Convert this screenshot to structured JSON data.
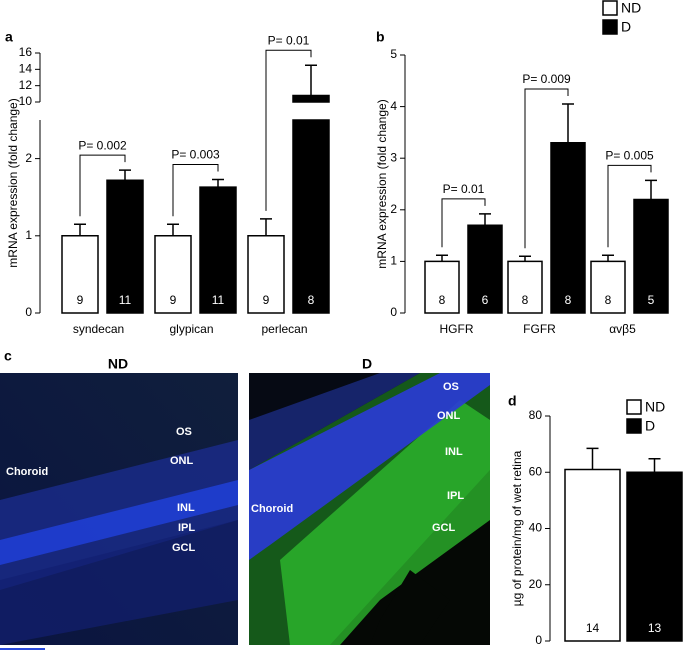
{
  "chart_data": [
    {
      "panel": "a",
      "type": "bar",
      "y_label": "mRNA expression (fold change)",
      "categories": [
        "syndecan",
        "glypican",
        "perlecan"
      ],
      "series": [
        {
          "color": "#ffffff",
          "values": [
            1,
            1,
            1
          ],
          "errors": [
            0.15,
            0.15,
            0.22
          ],
          "n": [
            9,
            9,
            9
          ]
        },
        {
          "color": "#000000",
          "values": [
            1.72,
            1.63,
            10.8
          ],
          "errors": [
            0.13,
            0.1,
            3.7
          ],
          "n": [
            11,
            11,
            8
          ]
        }
      ],
      "ylim": [
        0,
        16
      ],
      "ybreak": [
        2.5,
        10
      ],
      "yticks": [
        0,
        1,
        2,
        10,
        12,
        14,
        16
      ],
      "annotations": [
        {
          "text": "P= 0.002",
          "category": 0
        },
        {
          "text": "P= 0.003",
          "category": 1
        },
        {
          "text": "P= 0.01",
          "category": 2
        }
      ]
    },
    {
      "panel": "b",
      "type": "bar",
      "y_label": "mRNA expression (fold change)",
      "categories": [
        "HGFR",
        "FGFR",
        "αvβ5"
      ],
      "series": [
        {
          "name": "ND",
          "color": "#ffffff",
          "values": [
            1,
            1,
            1
          ],
          "errors": [
            0.12,
            0.1,
            0.12
          ],
          "n": [
            8,
            8,
            8
          ]
        },
        {
          "name": "D",
          "color": "#000000",
          "values": [
            1.7,
            3.3,
            2.2
          ],
          "errors": [
            0.22,
            0.75,
            0.37
          ],
          "n": [
            6,
            8,
            5
          ]
        }
      ],
      "ylim": [
        0,
        5
      ],
      "yticks": [
        0,
        1,
        2,
        3,
        4,
        5
      ],
      "legend": "top-right",
      "annotations": [
        {
          "text": "P= 0.01",
          "category": 0
        },
        {
          "text": "P= 0.009",
          "category": 1
        },
        {
          "text": "P= 0.005",
          "category": 2
        }
      ]
    },
    {
      "panel": "d",
      "type": "bar",
      "y_label": "µg of protein/mg of wet retina",
      "categories": [
        null
      ],
      "series": [
        {
          "name": "ND",
          "color": "#ffffff",
          "values": [
            61
          ],
          "errors": [
            7.5
          ],
          "n": [
            14
          ]
        },
        {
          "name": "D",
          "color": "#000000",
          "values": [
            60
          ],
          "errors": [
            4.8
          ],
          "n": [
            13
          ]
        }
      ],
      "ylim": [
        0,
        80
      ],
      "yticks": [
        0,
        20,
        40,
        60,
        80
      ],
      "legend": "top-right"
    }
  ],
  "panel_c": {
    "label": "c",
    "images": [
      {
        "title": "ND",
        "labels": [
          "OS",
          "ONL",
          "Choroid",
          "INL",
          "IPL",
          "GCL"
        ]
      },
      {
        "title": "D",
        "labels": [
          "OS",
          "ONL",
          "INL",
          "IPL",
          "Choroid",
          "GCL"
        ]
      }
    ]
  }
}
